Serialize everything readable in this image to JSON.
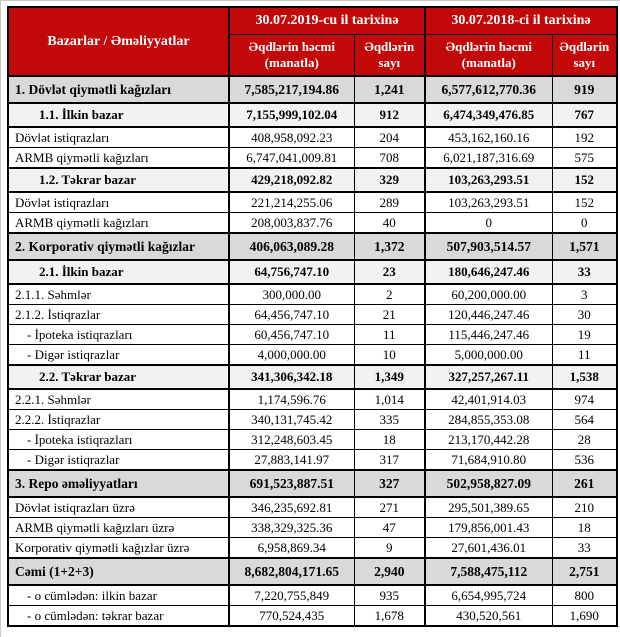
{
  "colors": {
    "header_bg": "#C20808",
    "header_text": "#FFFFFF",
    "section_row_bg": "#D9D9D9",
    "subsection_row_bg": "#F2F2F2",
    "border": "#000000"
  },
  "table": {
    "corner_header": "Bazarlar / Əməliyyatlar",
    "column_groups": [
      {
        "title": "30.07.2019-cu il tarixinə",
        "columns": [
          "Əqdlərin həcmi (manatla)",
          "Əqdlərin sayı"
        ]
      },
      {
        "title": "30.07.2018-ci il tarixinə",
        "columns": [
          "Əqdlərin həcmi (manatla)",
          "Əqdlərin sayı"
        ]
      }
    ],
    "rows": [
      {
        "label": "1. Dövlət qiymətli kağızları",
        "style": "section",
        "values": [
          "7,585,217,194.86",
          "1,241",
          "6,577,612,770.36",
          "919"
        ]
      },
      {
        "label": "1.1. İlkin bazar",
        "style": "subsection",
        "values": [
          "7,155,999,102.04",
          "912",
          "6,474,349,476.85",
          "767"
        ]
      },
      {
        "label": "Dövlət istiqrazları",
        "style": "plain",
        "values": [
          "408,958,092.23",
          "204",
          "453,162,160.16",
          "192"
        ]
      },
      {
        "label": "ARMB qiymətli kağızları",
        "style": "plain",
        "values": [
          "6,747,041,009.81",
          "708",
          "6,021,187,316.69",
          "575"
        ]
      },
      {
        "label": "1.2. Təkrar bazar",
        "style": "subsection",
        "values": [
          "429,218,092.82",
          "329",
          "103,263,293.51",
          "152"
        ]
      },
      {
        "label": "Dövlət istiqrazları",
        "style": "plain",
        "values": [
          "221,214,255.06",
          "289",
          "103,263,293.51",
          "152"
        ]
      },
      {
        "label": "ARMB qiymətli kağızları",
        "style": "plain",
        "values": [
          "208,003,837.76",
          "40",
          "0",
          "0"
        ]
      },
      {
        "label": "2. Korporativ qiymətli kağızlar",
        "style": "section",
        "values": [
          "406,063,089.28",
          "1,372",
          "507,903,514.57",
          "1,571"
        ]
      },
      {
        "label": "2.1. İlkin bazar",
        "style": "subsection",
        "values": [
          "64,756,747.10",
          "23",
          "180,646,247.46",
          "33"
        ]
      },
      {
        "label": "2.1.1. Səhmlər",
        "style": "plain",
        "values": [
          "300,000.00",
          "2",
          "60,200,000.00",
          "3"
        ]
      },
      {
        "label": "2.1.2. İstiqrazlar",
        "style": "plain",
        "values": [
          "64,456,747.10",
          "21",
          "120,446,247.46",
          "30"
        ]
      },
      {
        "label": "- İpoteka istiqrazları",
        "style": "plain dash",
        "values": [
          "60,456,747.10",
          "11",
          "115,446,247.46",
          "19"
        ]
      },
      {
        "label": "- Digər istiqrazlar",
        "style": "plain dash",
        "values": [
          "4,000,000.00",
          "10",
          "5,000,000.00",
          "11"
        ]
      },
      {
        "label": "2.2. Təkrar bazar",
        "style": "subsection",
        "values": [
          "341,306,342.18",
          "1,349",
          "327,257,267.11",
          "1,538"
        ]
      },
      {
        "label": "2.2.1. Səhmlər",
        "style": "plain",
        "values": [
          "1,174,596.76",
          "1,014",
          "42,401,914.03",
          "974"
        ]
      },
      {
        "label": "2.2.2. İstiqrazlar",
        "style": "plain",
        "values": [
          "340,131,745.42",
          "335",
          "284,855,353.08",
          "564"
        ]
      },
      {
        "label": "- İpoteka istiqrazları",
        "style": "plain dash",
        "values": [
          "312,248,603.45",
          "18",
          "213,170,442.28",
          "28"
        ]
      },
      {
        "label": "- Digər istiqrazlar",
        "style": "plain dash",
        "values": [
          "27,883,141.97",
          "317",
          "71,684,910.80",
          "536"
        ]
      },
      {
        "label": "3. Repo əməliyyatları",
        "style": "section",
        "values": [
          "691,523,887.51",
          "327",
          "502,958,827.09",
          "261"
        ]
      },
      {
        "label": "Dövlət istiqrazları üzrə",
        "style": "plain",
        "values": [
          "346,235,692.81",
          "271",
          "295,501,389.65",
          "210"
        ]
      },
      {
        "label": "ARMB qiymətli kağızları üzrə",
        "style": "plain",
        "values": [
          "338,329,325.36",
          "47",
          "179,856,001.43",
          "18"
        ]
      },
      {
        "label": "Korporativ qiymətli kağızlar üzrə",
        "style": "plain",
        "values": [
          "6,958,869.34",
          "9",
          "27,601,436.01",
          "33"
        ]
      },
      {
        "label": "Cəmi (1+2+3)",
        "style": "section",
        "values": [
          "8,682,804,171.65",
          "2,940",
          "7,588,475,112",
          "2,751"
        ]
      },
      {
        "label": "- o cümlədən: ilkin bazar",
        "style": "plain dash",
        "values": [
          "7,220,755,849",
          "935",
          "6,654,995,724",
          "800"
        ]
      },
      {
        "label": "- o cümlədən: təkrar bazar",
        "style": "plain dash",
        "values": [
          "770,524,435",
          "1,678",
          "430,520,561",
          "1,690"
        ]
      }
    ]
  }
}
